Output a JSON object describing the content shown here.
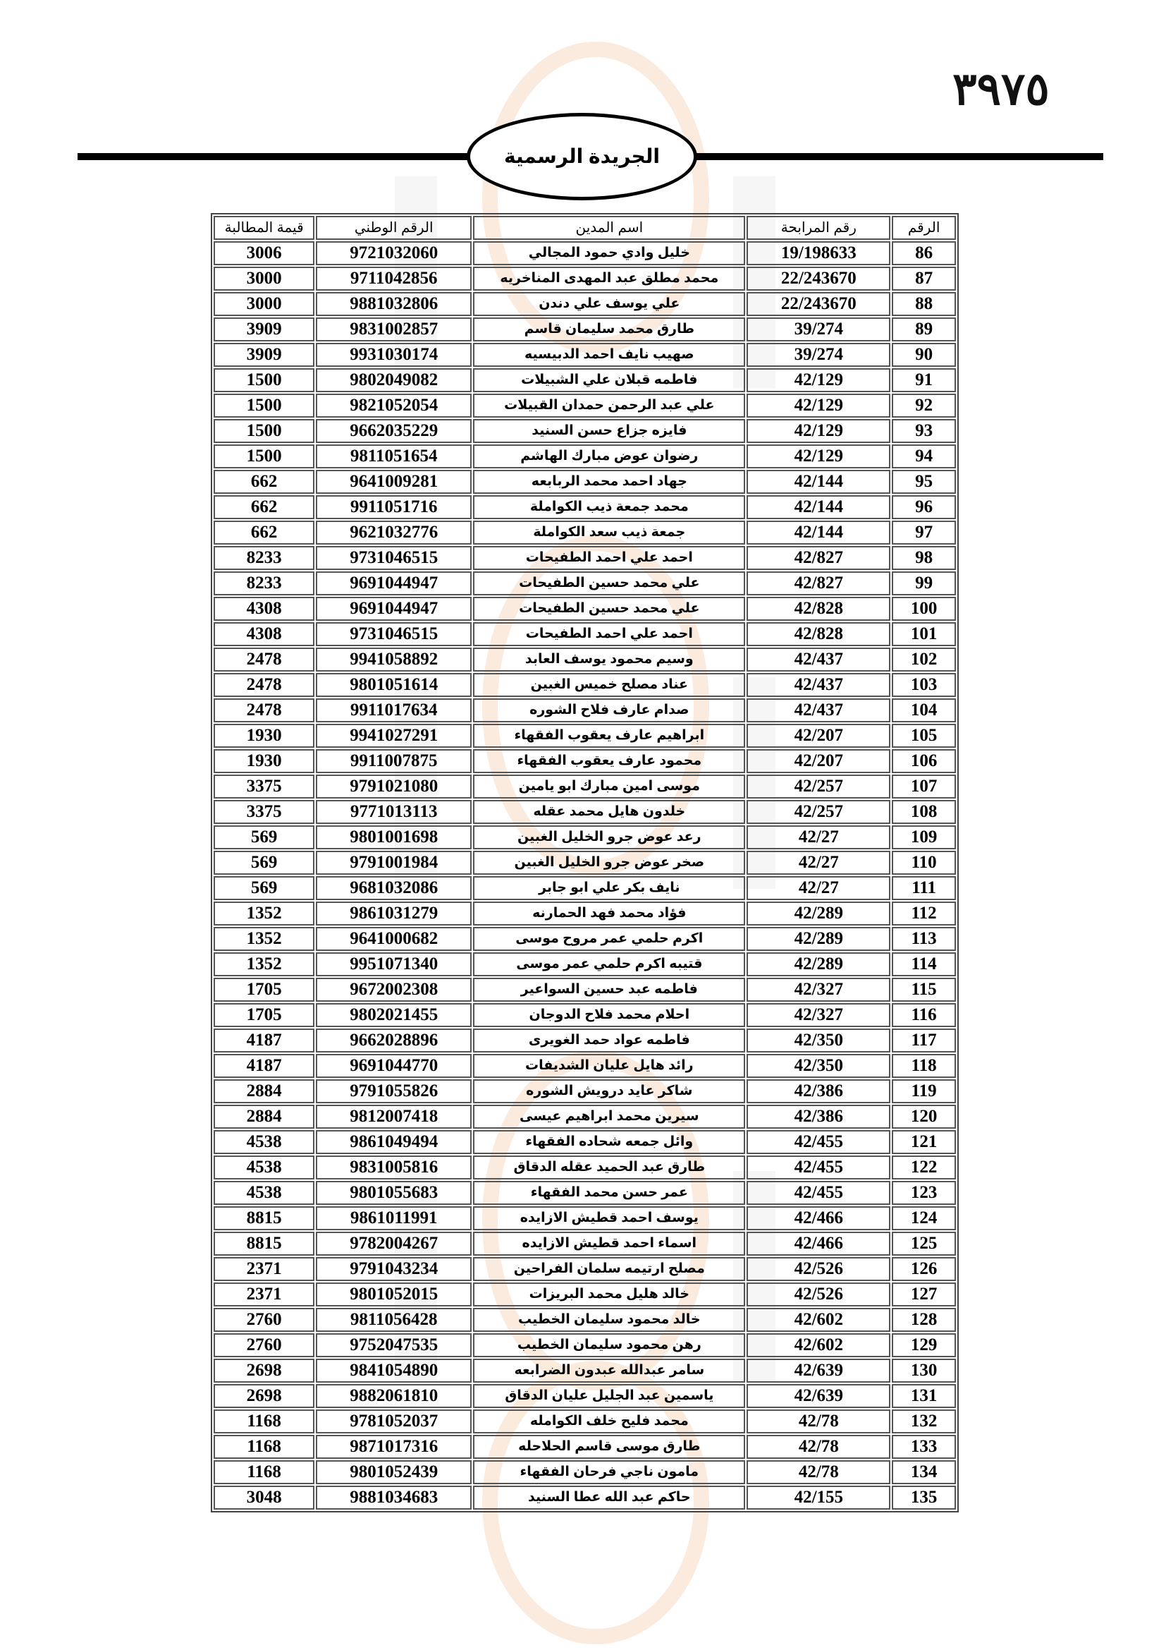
{
  "page_number": "٣٩٧٥",
  "publication_title": "الجريدة الرسمية",
  "watermark": {
    "text": "مدار الساعة الإخبارية",
    "colors": [
      "#f3c7a0",
      "#e6e6e6"
    ]
  },
  "table": {
    "headers": [
      "الرقم",
      "رقم المرابحة",
      "اسم المدين",
      "الرقم الوطني",
      "قيمة المطالبة"
    ],
    "rows": [
      [
        "86",
        "19/198633",
        "خليل وادي حمود المجالي",
        "9721032060",
        "3006"
      ],
      [
        "87",
        "22/243670",
        "محمد مطلق عبد المهدى المناخريه",
        "9711042856",
        "3000"
      ],
      [
        "88",
        "22/243670",
        "علي يوسف علي دندن",
        "9881032806",
        "3000"
      ],
      [
        "89",
        "39/274",
        "طارق محمد سليمان قاسم",
        "9831002857",
        "3909"
      ],
      [
        "90",
        "39/274",
        "صهيب نايف احمد الدبيسيه",
        "9931030174",
        "3909"
      ],
      [
        "91",
        "42/129",
        "فاطمه قبلان علي الشبيلات",
        "9802049082",
        "1500"
      ],
      [
        "92",
        "42/129",
        "علي عبد الرحمن حمدان القبيلات",
        "9821052054",
        "1500"
      ],
      [
        "93",
        "42/129",
        "فايزه جزاع حسن السنيد",
        "9662035229",
        "1500"
      ],
      [
        "94",
        "42/129",
        "رضوان عوض مبارك الهاشم",
        "9811051654",
        "1500"
      ],
      [
        "95",
        "42/144",
        "جهاد احمد محمد الربابعه",
        "9641009281",
        "662"
      ],
      [
        "96",
        "42/144",
        "محمد جمعة ذيب الكواملة",
        "9911051716",
        "662"
      ],
      [
        "97",
        "42/144",
        "جمعة ذيب سعد الكواملة",
        "9621032776",
        "662"
      ],
      [
        "98",
        "42/827",
        "احمد علي احمد الطفيحات",
        "9731046515",
        "8233"
      ],
      [
        "99",
        "42/827",
        "علي محمد حسين الطفيحات",
        "9691044947",
        "8233"
      ],
      [
        "100",
        "42/828",
        "علي محمد حسين الطفيحات",
        "9691044947",
        "4308"
      ],
      [
        "101",
        "42/828",
        "احمد علي احمد الطفيحات",
        "9731046515",
        "4308"
      ],
      [
        "102",
        "42/437",
        "وسيم محمود يوسف العابد",
        "9941058892",
        "2478"
      ],
      [
        "103",
        "42/437",
        "عناد مصلح خميس الغبين",
        "9801051614",
        "2478"
      ],
      [
        "104",
        "42/437",
        "صدام عارف فلاح الشوره",
        "9911017634",
        "2478"
      ],
      [
        "105",
        "42/207",
        "ابراهيم عارف يعقوب الفقهاء",
        "9941027291",
        "1930"
      ],
      [
        "106",
        "42/207",
        "محمود عارف يعقوب الفقهاء",
        "9911007875",
        "1930"
      ],
      [
        "107",
        "42/257",
        "موسى امين مبارك ابو يامين",
        "9791021080",
        "3375"
      ],
      [
        "108",
        "42/257",
        "خلدون هايل محمد عقله",
        "9771013113",
        "3375"
      ],
      [
        "109",
        "42/27",
        "رعد عوض جرو الخليل الغبين",
        "9801001698",
        "569"
      ],
      [
        "110",
        "42/27",
        "صخر عوض جرو الخليل الغبين",
        "9791001984",
        "569"
      ],
      [
        "111",
        "42/27",
        "نايف بكر علي ابو جابر",
        "9681032086",
        "569"
      ],
      [
        "112",
        "42/289",
        "فؤاد محمد فهد الحمارنه",
        "9861031279",
        "1352"
      ],
      [
        "113",
        "42/289",
        "اكرم حلمي  عمر مروح موسى",
        "9641000682",
        "1352"
      ],
      [
        "114",
        "42/289",
        "قتيبه اكرم حلمي  عمر موسى",
        "9951071340",
        "1352"
      ],
      [
        "115",
        "42/327",
        "فاطمه عبد حسين السواعير",
        "9672002308",
        "1705"
      ],
      [
        "116",
        "42/327",
        "احلام محمد فلاح الدوجان",
        "9802021455",
        "1705"
      ],
      [
        "117",
        "42/350",
        "فاطمه عواد حمد الغويرى",
        "9662028896",
        "4187"
      ],
      [
        "118",
        "42/350",
        "رائد هايل عليان الشديفات",
        "9691044770",
        "4187"
      ],
      [
        "119",
        "42/386",
        "شاكر عايد درويش الشوره",
        "9791055826",
        "2884"
      ],
      [
        "120",
        "42/386",
        "سيرين محمد ابراهيم عيسى",
        "9812007418",
        "2884"
      ],
      [
        "121",
        "42/455",
        "وائل جمعه شحاده الفقهاء",
        "9861049494",
        "4538"
      ],
      [
        "122",
        "42/455",
        "طارق عبد الحميد عقله الدقاق",
        "9831005816",
        "4538"
      ],
      [
        "123",
        "42/455",
        "عمر حسن محمد الفقهاء",
        "9801055683",
        "4538"
      ],
      [
        "124",
        "42/466",
        "يوسف احمد قطيش الازايده",
        "9861011991",
        "8815"
      ],
      [
        "125",
        "42/466",
        "اسماء احمد قطيش الازايده",
        "9782004267",
        "8815"
      ],
      [
        "126",
        "42/526",
        "مصلح ارتيمه سلمان الفراحين",
        "9791043234",
        "2371"
      ],
      [
        "127",
        "42/526",
        "خالد هليل محمد البريزات",
        "9801052015",
        "2371"
      ],
      [
        "128",
        "42/602",
        "خالد محمود سليمان الخطيب",
        "9811056428",
        "2760"
      ],
      [
        "129",
        "42/602",
        "رهن محمود سليمان الخطيب",
        "9752047535",
        "2760"
      ],
      [
        "130",
        "42/639",
        "سامر عبدالله عبدون الضرابعه",
        "9841054890",
        "2698"
      ],
      [
        "131",
        "42/639",
        "ياسمين عبد الجليل عليان الدقاق",
        "9882061810",
        "2698"
      ],
      [
        "132",
        "42/78",
        "محمد فليح خلف الكوامله",
        "9781052037",
        "1168"
      ],
      [
        "133",
        "42/78",
        "طارق موسى قاسم الحلاحله",
        "9871017316",
        "1168"
      ],
      [
        "134",
        "42/78",
        "مامون ناجي فرحان الفقهاء",
        "9801052439",
        "1168"
      ],
      [
        "135",
        "42/155",
        "حاكم عبد الله عطا السنيد",
        "9881034683",
        "3048"
      ]
    ]
  }
}
